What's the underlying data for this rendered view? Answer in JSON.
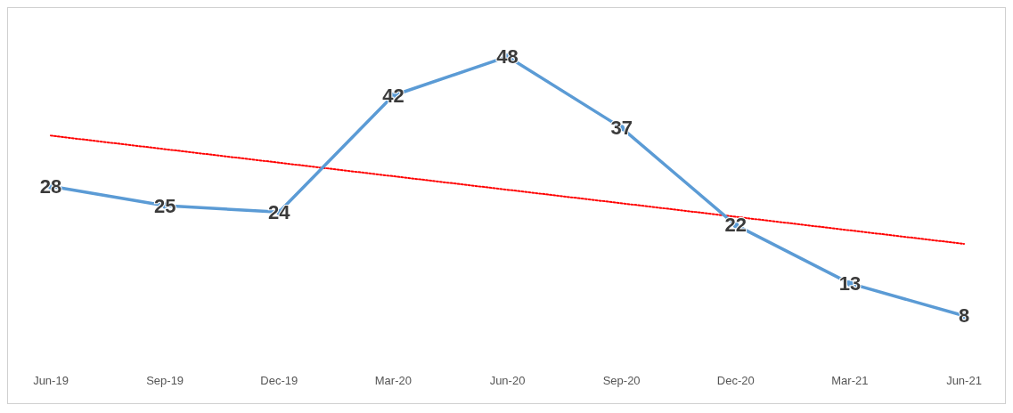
{
  "chart_data": {
    "type": "line",
    "categories": [
      "Jun-19",
      "Sep-19",
      "Dec-19",
      "Mar-20",
      "Jun-20",
      "Sep-20",
      "Dec-20",
      "Mar-21",
      "Jun-21"
    ],
    "series": [
      {
        "color": "#5b9bd5",
        "values": [
          28,
          25,
          24,
          42,
          48,
          37,
          22,
          13,
          8
        ],
        "value_labels": [
          "28",
          "25",
          "24",
          "42",
          "48",
          "37",
          "22",
          "13",
          "8"
        ]
      },
      {
        "type": "line",
        "x": [
          "Jun-19",
          "Jun-21"
        ],
        "values": [
          35.8,
          19.1
        ],
        "color": "#ff0000",
        "line_style": "dotted",
        "marker": "none"
      }
    ],
    "marker": "circle",
    "line_style": "solid",
    "grid": false
  }
}
